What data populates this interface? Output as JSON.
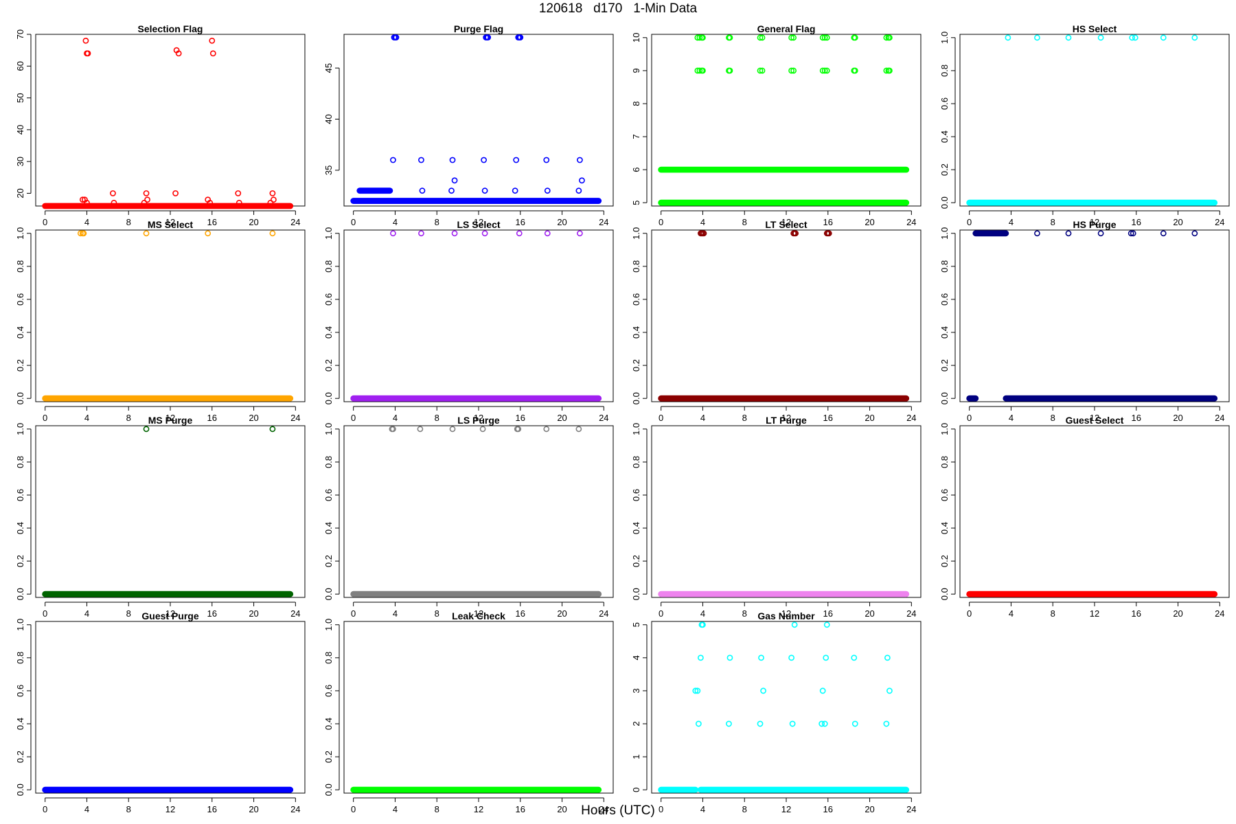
{
  "figure": {
    "title": "120618   d170   1-Min Data",
    "xlabel": "Hours (UTC)"
  },
  "chart_data": [
    {
      "type": "scatter",
      "title": "Selection Flag",
      "color": "#ff0000",
      "xlim": [
        0,
        24
      ],
      "ylim": [
        16,
        70
      ],
      "yticks": [
        20,
        30,
        40,
        50,
        60,
        70
      ],
      "base": [
        {
          "y": 16,
          "ranges": [
            [
              0,
              23.5
            ]
          ]
        }
      ],
      "points": [
        [
          3.6,
          18
        ],
        [
          3.8,
          18
        ],
        [
          3.9,
          68
        ],
        [
          4.0,
          64
        ],
        [
          4.1,
          64
        ],
        [
          4.0,
          17
        ],
        [
          6.5,
          20
        ],
        [
          6.6,
          17
        ],
        [
          9.5,
          17
        ],
        [
          9.7,
          20
        ],
        [
          9.8,
          18
        ],
        [
          12.5,
          20
        ],
        [
          12.6,
          65
        ],
        [
          12.8,
          64
        ],
        [
          15.6,
          18
        ],
        [
          15.8,
          17
        ],
        [
          16.0,
          68
        ],
        [
          16.1,
          64
        ],
        [
          18.5,
          20
        ],
        [
          18.6,
          17
        ],
        [
          21.6,
          17
        ],
        [
          21.8,
          20
        ],
        [
          21.9,
          18
        ]
      ]
    },
    {
      "type": "scatter",
      "title": "Purge Flag",
      "color": "#0000ff",
      "xlim": [
        0,
        24
      ],
      "ylim": [
        31.5,
        48.3
      ],
      "yticks": [
        35,
        40,
        45
      ],
      "base": [
        {
          "y": 32,
          "ranges": [
            [
              0,
              23.5
            ]
          ]
        },
        {
          "y": 33,
          "ranges": [
            [
              0.6,
              3.5
            ]
          ]
        }
      ],
      "points": [
        [
          3.8,
          36
        ],
        [
          3.9,
          48
        ],
        [
          4.0,
          48
        ],
        [
          4.1,
          48
        ],
        [
          6.5,
          36
        ],
        [
          6.6,
          33
        ],
        [
          9.4,
          33
        ],
        [
          9.5,
          36
        ],
        [
          9.7,
          34
        ],
        [
          12.5,
          36
        ],
        [
          12.6,
          33
        ],
        [
          12.7,
          48
        ],
        [
          12.8,
          48
        ],
        [
          12.9,
          48
        ],
        [
          15.5,
          33
        ],
        [
          15.6,
          36
        ],
        [
          15.8,
          48
        ],
        [
          15.9,
          48
        ],
        [
          16.0,
          48
        ],
        [
          18.5,
          36
        ],
        [
          18.6,
          33
        ],
        [
          21.6,
          33
        ],
        [
          21.7,
          36
        ],
        [
          21.9,
          34
        ]
      ]
    },
    {
      "type": "scatter",
      "title": "General Flag",
      "color": "#00ff00",
      "xlim": [
        0,
        24
      ],
      "ylim": [
        4.9,
        10.1
      ],
      "yticks": [
        5,
        6,
        7,
        8,
        9,
        10
      ],
      "base": [
        {
          "y": 5,
          "ranges": [
            [
              0,
              23.5
            ]
          ]
        },
        {
          "y": 6,
          "ranges": [
            [
              0,
              23.5
            ]
          ]
        }
      ],
      "points": [
        [
          3.5,
          10
        ],
        [
          3.7,
          10
        ],
        [
          3.9,
          10
        ],
        [
          4.0,
          10
        ],
        [
          3.5,
          9
        ],
        [
          3.7,
          9
        ],
        [
          3.9,
          9
        ],
        [
          4.0,
          9
        ],
        [
          6.5,
          10
        ],
        [
          6.6,
          10
        ],
        [
          6.5,
          9
        ],
        [
          6.6,
          9
        ],
        [
          9.5,
          10
        ],
        [
          9.7,
          10
        ],
        [
          9.5,
          9
        ],
        [
          9.7,
          9
        ],
        [
          12.5,
          10
        ],
        [
          12.7,
          10
        ],
        [
          12.5,
          9
        ],
        [
          12.7,
          9
        ],
        [
          15.5,
          10
        ],
        [
          15.7,
          10
        ],
        [
          15.9,
          10
        ],
        [
          15.5,
          9
        ],
        [
          15.7,
          9
        ],
        [
          15.9,
          9
        ],
        [
          18.5,
          10
        ],
        [
          18.6,
          10
        ],
        [
          18.5,
          9
        ],
        [
          18.6,
          9
        ],
        [
          21.6,
          10
        ],
        [
          21.8,
          10
        ],
        [
          21.9,
          10
        ],
        [
          21.6,
          9
        ],
        [
          21.8,
          9
        ],
        [
          21.9,
          9
        ]
      ]
    },
    {
      "type": "scatter",
      "title": "HS Select",
      "color": "#00ffff",
      "xlim": [
        0,
        24
      ],
      "ylim": [
        -0.02,
        1.02
      ],
      "yticks": [
        0,
        0.2,
        0.4,
        0.6,
        0.8,
        1
      ],
      "base": [
        {
          "y": 0,
          "ranges": [
            [
              0,
              23.5
            ]
          ]
        }
      ],
      "points": [
        [
          3.7,
          1
        ],
        [
          6.5,
          1
        ],
        [
          9.5,
          1
        ],
        [
          12.6,
          1
        ],
        [
          15.6,
          1
        ],
        [
          15.9,
          1
        ],
        [
          18.6,
          1
        ],
        [
          21.6,
          1
        ]
      ]
    },
    {
      "type": "scatter",
      "title": "MS Select",
      "color": "#ffa500",
      "xlim": [
        0,
        24
      ],
      "ylim": [
        -0.02,
        1.02
      ],
      "yticks": [
        0,
        0.2,
        0.4,
        0.6,
        0.8,
        1
      ],
      "base": [
        {
          "y": 0,
          "ranges": [
            [
              0,
              23.5
            ]
          ]
        }
      ],
      "points": [
        [
          3.4,
          1
        ],
        [
          3.6,
          1
        ],
        [
          3.7,
          1
        ],
        [
          9.7,
          1
        ],
        [
          15.6,
          1
        ],
        [
          21.8,
          1
        ]
      ]
    },
    {
      "type": "scatter",
      "title": "LS Select",
      "color": "#a020f0",
      "xlim": [
        0,
        24
      ],
      "ylim": [
        -0.02,
        1.02
      ],
      "yticks": [
        0,
        0.2,
        0.4,
        0.6,
        0.8,
        1
      ],
      "base": [
        {
          "y": 0,
          "ranges": [
            [
              0,
              23.5
            ]
          ]
        }
      ],
      "points": [
        [
          3.8,
          1
        ],
        [
          6.5,
          1
        ],
        [
          9.7,
          1
        ],
        [
          12.6,
          1
        ],
        [
          15.9,
          1
        ],
        [
          18.6,
          1
        ],
        [
          21.7,
          1
        ]
      ]
    },
    {
      "type": "scatter",
      "title": "LT Select",
      "color": "#8b0000",
      "xlim": [
        0,
        24
      ],
      "ylim": [
        -0.02,
        1.02
      ],
      "yticks": [
        0,
        0.2,
        0.4,
        0.6,
        0.8,
        1
      ],
      "base": [
        {
          "y": 0,
          "ranges": [
            [
              0,
              23.5
            ]
          ]
        }
      ],
      "points": [
        [
          3.8,
          1
        ],
        [
          3.9,
          1
        ],
        [
          4.0,
          1
        ],
        [
          4.1,
          1
        ],
        [
          12.7,
          1
        ],
        [
          12.8,
          1
        ],
        [
          12.9,
          1
        ],
        [
          15.9,
          1
        ],
        [
          16.0,
          1
        ],
        [
          16.1,
          1
        ]
      ]
    },
    {
      "type": "scatter",
      "title": "HS Purge",
      "color": "#000080",
      "xlim": [
        0,
        24
      ],
      "ylim": [
        -0.02,
        1.02
      ],
      "yticks": [
        0,
        0.2,
        0.4,
        0.6,
        0.8,
        1
      ],
      "base": [
        {
          "y": 0,
          "ranges": [
            [
              0,
              0.6
            ],
            [
              3.5,
              23.5
            ]
          ]
        },
        {
          "y": 1,
          "ranges": [
            [
              0.6,
              3.5
            ]
          ]
        }
      ],
      "points": [
        [
          6.5,
          1
        ],
        [
          9.5,
          1
        ],
        [
          12.6,
          1
        ],
        [
          15.5,
          1
        ],
        [
          15.7,
          1
        ],
        [
          18.6,
          1
        ],
        [
          21.6,
          1
        ]
      ]
    },
    {
      "type": "scatter",
      "title": "MS Purge",
      "color": "#006400",
      "xlim": [
        0,
        24
      ],
      "ylim": [
        -0.02,
        1.02
      ],
      "yticks": [
        0,
        0.2,
        0.4,
        0.6,
        0.8,
        1
      ],
      "base": [
        {
          "y": 0,
          "ranges": [
            [
              0,
              23.5
            ]
          ]
        }
      ],
      "points": [
        [
          9.7,
          1
        ],
        [
          21.8,
          1
        ]
      ]
    },
    {
      "type": "scatter",
      "title": "LS Purge",
      "color": "#808080",
      "xlim": [
        0,
        24
      ],
      "ylim": [
        -0.02,
        1.02
      ],
      "yticks": [
        0,
        0.2,
        0.4,
        0.6,
        0.8,
        1
      ],
      "base": [
        {
          "y": 0,
          "ranges": [
            [
              0,
              23.5
            ]
          ]
        }
      ],
      "points": [
        [
          3.7,
          1
        ],
        [
          3.8,
          1
        ],
        [
          6.4,
          1
        ],
        [
          9.5,
          1
        ],
        [
          12.4,
          1
        ],
        [
          15.7,
          1
        ],
        [
          15.8,
          1
        ],
        [
          18.5,
          1
        ],
        [
          21.6,
          1
        ]
      ]
    },
    {
      "type": "scatter",
      "title": "LT Purge",
      "color": "#ee82ee",
      "xlim": [
        0,
        24
      ],
      "ylim": [
        -0.02,
        1.02
      ],
      "yticks": [
        0,
        0.2,
        0.4,
        0.6,
        0.8,
        1
      ],
      "base": [
        {
          "y": 0,
          "ranges": [
            [
              0,
              23.5
            ]
          ]
        }
      ],
      "points": []
    },
    {
      "type": "scatter",
      "title": "Guest Select",
      "color": "#ff0000",
      "xlim": [
        0,
        24
      ],
      "ylim": [
        -0.02,
        1.02
      ],
      "yticks": [
        0,
        0.2,
        0.4,
        0.6,
        0.8,
        1
      ],
      "base": [
        {
          "y": 0,
          "ranges": [
            [
              0,
              23.5
            ]
          ]
        }
      ],
      "points": []
    },
    {
      "type": "scatter",
      "title": "Guest Purge",
      "color": "#0000ff",
      "xlim": [
        0,
        24
      ],
      "ylim": [
        -0.02,
        1.02
      ],
      "yticks": [
        0,
        0.2,
        0.4,
        0.6,
        0.8,
        1
      ],
      "base": [
        {
          "y": 0,
          "ranges": [
            [
              0,
              23.5
            ]
          ]
        }
      ],
      "points": []
    },
    {
      "type": "scatter",
      "title": "Leak Check",
      "color": "#00ff00",
      "xlim": [
        0,
        24
      ],
      "ylim": [
        -0.02,
        1.02
      ],
      "yticks": [
        0,
        0.2,
        0.4,
        0.6,
        0.8,
        1
      ],
      "base": [
        {
          "y": 0,
          "ranges": [
            [
              0,
              23.5
            ]
          ]
        }
      ],
      "points": []
    },
    {
      "type": "scatter",
      "title": "Gas Number",
      "color": "#00ffff",
      "xlim": [
        0,
        24
      ],
      "ylim": [
        -0.1,
        5.1
      ],
      "yticks": [
        0,
        1,
        2,
        3,
        4,
        5
      ],
      "base": [
        {
          "y": 0,
          "ranges": [
            [
              0,
              3.3
            ],
            [
              3.8,
              23.5
            ]
          ]
        }
      ],
      "points": [
        [
          3.3,
          3
        ],
        [
          3.5,
          3
        ],
        [
          3.6,
          2
        ],
        [
          3.8,
          4
        ],
        [
          3.9,
          5
        ],
        [
          4.0,
          5
        ],
        [
          6.5,
          2
        ],
        [
          6.6,
          4
        ],
        [
          9.5,
          2
        ],
        [
          9.6,
          4
        ],
        [
          9.8,
          3
        ],
        [
          12.5,
          4
        ],
        [
          12.6,
          2
        ],
        [
          12.8,
          5
        ],
        [
          15.4,
          2
        ],
        [
          15.5,
          3
        ],
        [
          15.7,
          2
        ],
        [
          15.8,
          4
        ],
        [
          15.9,
          5
        ],
        [
          18.5,
          4
        ],
        [
          18.6,
          2
        ],
        [
          21.6,
          2
        ],
        [
          21.7,
          4
        ],
        [
          21.9,
          3
        ]
      ]
    }
  ]
}
